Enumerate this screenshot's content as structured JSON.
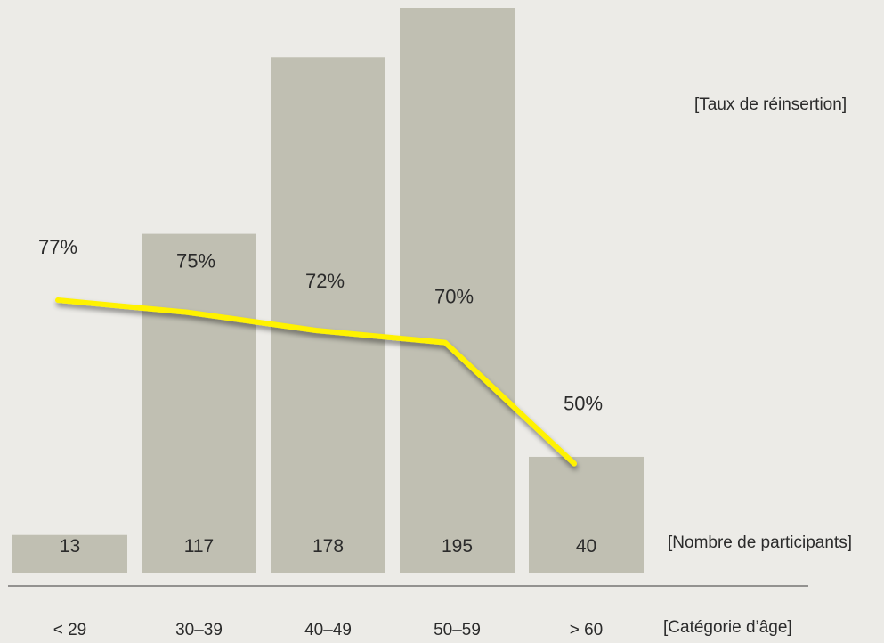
{
  "chart_data": {
    "type": "bar",
    "categories": [
      "< 29",
      "30–39",
      "40–49",
      "50–59",
      "> 60"
    ],
    "series": [
      {
        "name": "[Nombre de participants]",
        "type": "bar",
        "values": [
          13,
          117,
          178,
          195,
          40
        ],
        "labels": [
          "13",
          "117",
          "178",
          "195",
          "40"
        ],
        "color": "#c0bfb2"
      },
      {
        "name": "[Taux de réinsertion]",
        "type": "line",
        "values": [
          77,
          75,
          72,
          70,
          50
        ],
        "labels": [
          "77%",
          "75%",
          "72%",
          "70%",
          "50%"
        ],
        "color": "#fff200"
      }
    ],
    "xlabel": "[Catégorie d’âge]",
    "bar_row_label": "[Nombre de participants]",
    "legend": {
      "position": "top-right",
      "entries": [
        "[Taux de réinsertion]"
      ]
    },
    "grid": false
  }
}
